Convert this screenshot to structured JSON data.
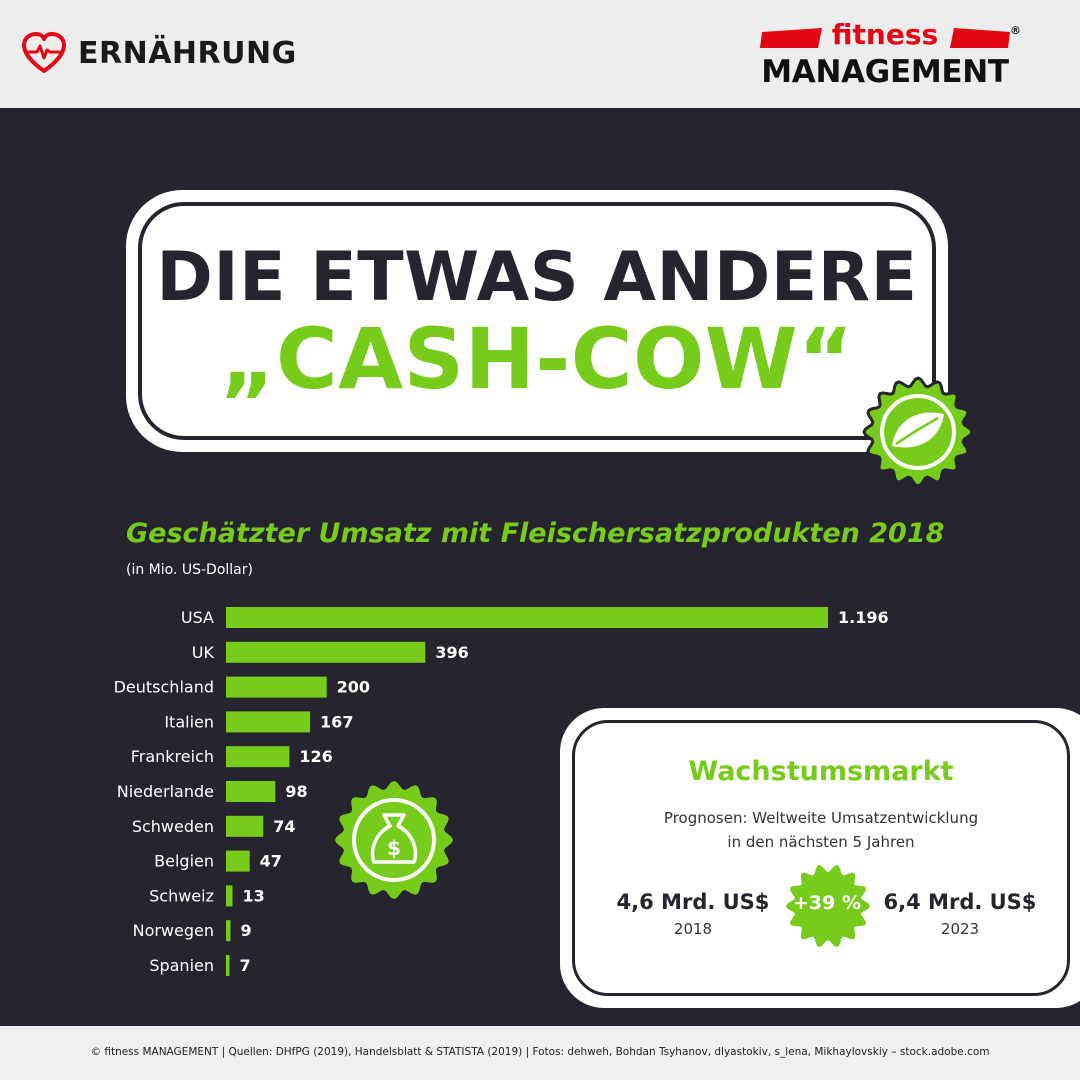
{
  "header": {
    "category": "ERNÄHRUNG",
    "brand_top": "fitness",
    "brand_bottom": "MANAGEMENT",
    "brand_reg": "®"
  },
  "title": {
    "line1": "DIE ETWAS ANDERE",
    "line2": "„CASH-COW“"
  },
  "chart_data": {
    "type": "bar",
    "orientation": "horizontal",
    "title": "Geschätzter Umsatz mit Fleischersatzprodukten 2018",
    "unit": "(in Mio. US-Dollar)",
    "categories": [
      "USA",
      "UK",
      "Deutschland",
      "Italien",
      "Frankreich",
      "Niederlande",
      "Schweden",
      "Belgien",
      "Schweiz",
      "Norwegen",
      "Spanien"
    ],
    "values": [
      1196,
      396,
      200,
      167,
      126,
      98,
      74,
      47,
      13,
      9,
      7
    ],
    "value_labels": [
      "1.196",
      "396",
      "200",
      "167",
      "126",
      "98",
      "74",
      "47",
      "13",
      "9",
      "7"
    ],
    "bar_color": "#77cc1b",
    "grid": false
  },
  "growth": {
    "title": "Wachstumsmarkt",
    "subtitle_line1": "Prognosen: Weltweite Umsatzentwicklung",
    "subtitle_line2": "in den nächsten 5 Jahren",
    "left_value": "4,6 Mrd. US$",
    "left_year": "2018",
    "right_value": "6,4 Mrd. US$",
    "right_year": "2023",
    "percent": "+39 %"
  },
  "footer": {
    "credits": "© fitness MANAGEMENT  |  Quellen: DHfPG (2019), Handelsblatt & STATISTA (2019)  |  Fotos: dehweh, Bohdan Tsyhanov, dlyastokiv, s_lena, Mikhaylovskiy – stock.adobe.com"
  },
  "icons": {
    "category": "heart-pulse-icon",
    "title_badge": "leaf-icon",
    "chart_badge": "money-bag-icon",
    "growth_badge": "percent-badge"
  },
  "colors": {
    "accent": "#77cc1b",
    "dark": "#25242f",
    "brand_red": "#e30613"
  }
}
